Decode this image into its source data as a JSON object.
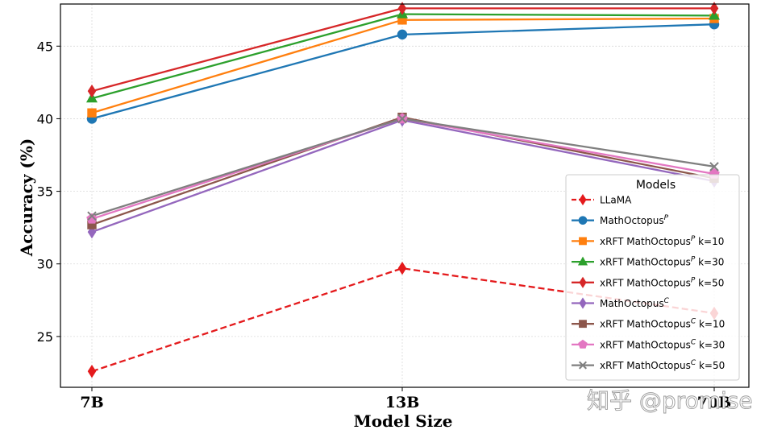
{
  "chart_data": {
    "type": "line",
    "xlabel": "Model Size",
    "ylabel": "Accuracy (%)",
    "categories": [
      "7B",
      "13B",
      "70B"
    ],
    "ylim": [
      21.5,
      47.9
    ],
    "yticks": [
      25,
      30,
      35,
      40,
      45
    ],
    "grid": true,
    "legend": {
      "title": "Models",
      "placement": "lower-right"
    },
    "series": [
      {
        "name": "LLaMA",
        "values": [
          22.6,
          29.7,
          26.6
        ],
        "color": "#e41a1c",
        "marker": "diamond",
        "linestyle": "dashed"
      },
      {
        "name": "MathOctopus",
        "sup": "P",
        "suffix": "",
        "values": [
          40.0,
          45.8,
          46.5
        ],
        "color": "#1f77b4",
        "marker": "circle",
        "linestyle": "solid"
      },
      {
        "name": "xRFT MathOctopus",
        "sup": "P",
        "suffix": " k=10",
        "values": [
          40.4,
          46.8,
          46.9
        ],
        "color": "#ff7f0e",
        "marker": "square",
        "linestyle": "solid"
      },
      {
        "name": "xRFT MathOctopus",
        "sup": "P",
        "suffix": " k=30",
        "values": [
          41.4,
          47.2,
          47.1
        ],
        "color": "#2ca02c",
        "marker": "triangle",
        "linestyle": "solid"
      },
      {
        "name": "xRFT MathOctopus",
        "sup": "P",
        "suffix": " k=50",
        "values": [
          41.9,
          47.6,
          47.6
        ],
        "color": "#d62728",
        "marker": "diamond",
        "linestyle": "solid"
      },
      {
        "name": "MathOctopus",
        "sup": "C",
        "suffix": "",
        "values": [
          32.2,
          39.9,
          35.7
        ],
        "color": "#9467bd",
        "marker": "diamond",
        "linestyle": "solid"
      },
      {
        "name": "xRFT MathOctopus",
        "sup": "C",
        "suffix": " k=10",
        "values": [
          32.7,
          40.1,
          35.9
        ],
        "color": "#8c564b",
        "marker": "square",
        "linestyle": "solid"
      },
      {
        "name": "xRFT MathOctopus",
        "sup": "C",
        "suffix": " k=30",
        "values": [
          33.1,
          40.0,
          36.2
        ],
        "color": "#e377c2",
        "marker": "pentagon",
        "linestyle": "solid"
      },
      {
        "name": "xRFT MathOctopus",
        "sup": "C",
        "suffix": " k=50",
        "values": [
          33.3,
          40.0,
          36.7
        ],
        "color": "#7f7f7f",
        "marker": "x",
        "linestyle": "solid"
      }
    ]
  },
  "watermark": "知乎 @promise"
}
